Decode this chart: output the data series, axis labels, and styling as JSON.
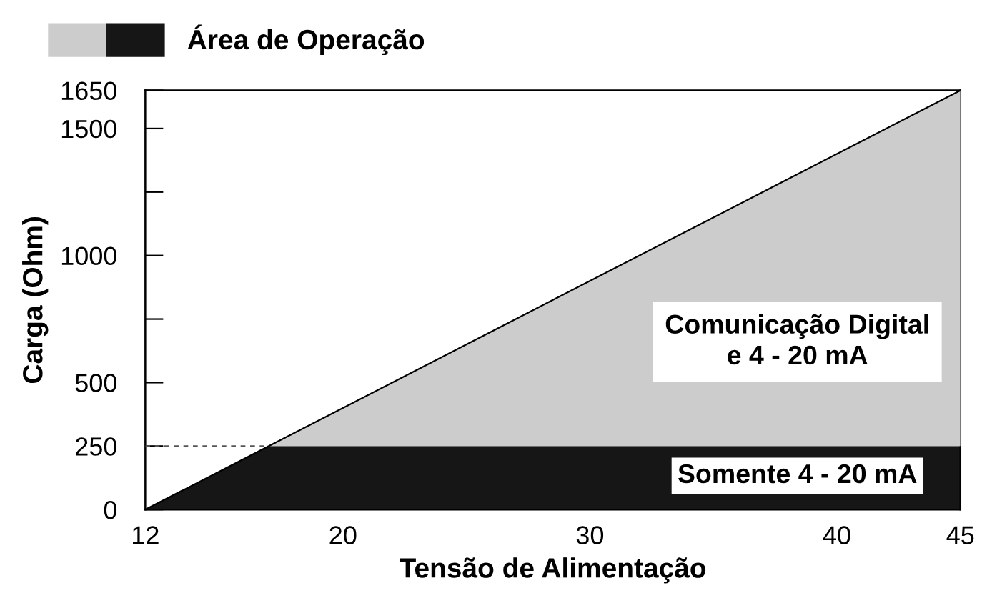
{
  "chart_data": {
    "type": "area",
    "stacked": true,
    "xlabel": "Tensão de Alimentação",
    "ylabel": "Carga (Ohm)",
    "x": [
      12,
      17,
      45
    ],
    "series": [
      {
        "name": "Área de Operação",
        "color": "#161616",
        "values": [
          0,
          250,
          250
        ]
      },
      {
        "color": "#cccccc",
        "values": [
          0,
          0,
          1400
        ]
      }
    ],
    "xlim": [
      12,
      45
    ],
    "xticks": [
      12,
      20,
      30,
      40,
      45
    ],
    "ylim": [
      0,
      1650
    ],
    "yticks": [
      0,
      250,
      500,
      {
        "value": 750,
        "label": null
      },
      1000,
      {
        "value": 1250,
        "label": null
      },
      1500,
      1650
    ],
    "ref_lines": [
      {
        "axis": "y",
        "value": 250,
        "label": null,
        "color": "#555555",
        "line_style": "dashed"
      }
    ],
    "annotations": [
      "Comunicação Digital\ne 4 - 20 mA",
      "Somente 4 - 20 mA"
    ],
    "legend": "top left",
    "grid": false
  }
}
